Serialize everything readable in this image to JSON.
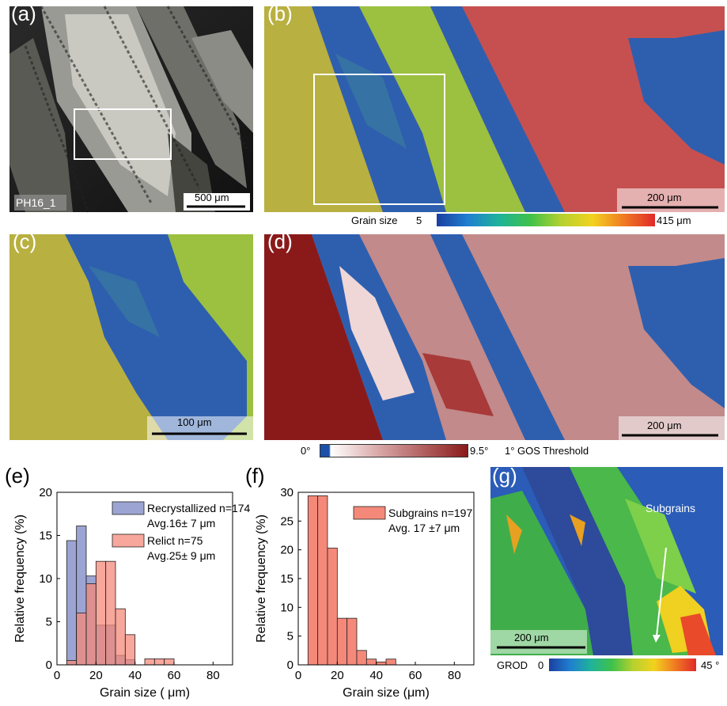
{
  "panels": {
    "a": {
      "label": "(a)",
      "sample": "PH16_1",
      "scalebar": "500 μm"
    },
    "b": {
      "label": "(b)",
      "scalebar": "200 μm"
    },
    "c": {
      "label": "(c)",
      "scalebar": "100 μm"
    },
    "d": {
      "label": "(d)",
      "scalebar": "200 μm"
    },
    "e": {
      "label": "(e)"
    },
    "f": {
      "label": "(f)"
    },
    "g": {
      "label": "(g)",
      "scalebar": "200 μm",
      "annotation": "Subgrains"
    }
  },
  "colorbars": {
    "grain_size": {
      "title": "Grain size",
      "min": "5",
      "max": "415 μm"
    },
    "gos": {
      "min": "0°",
      "max": "9.5°",
      "threshold": "1° GOS Threshold"
    },
    "grod": {
      "title": "GROD",
      "min": "0",
      "max": "45 °"
    }
  },
  "colors": {
    "recrystallized": "#7b86c4",
    "relict": "#f4897a",
    "overlap": "#a64a66",
    "subgrains": "#f4897a",
    "map_red": "#c65050",
    "map_yellow": "#b8b040",
    "map_green": "#9cc040",
    "map_blue": "#2e5faf",
    "gos_dark": "#8a1a1a",
    "gos_light": "#c28a8a"
  },
  "chart_data": [
    {
      "type": "bar",
      "panel": "e",
      "xlabel": "Grain size ( μm)",
      "ylabel": "Relative frequency (%)",
      "xlim": [
        0,
        90
      ],
      "ylim": [
        0,
        20
      ],
      "xticks": [
        "0",
        "20",
        "40",
        "60",
        "80"
      ],
      "yticks": [
        "0",
        "5",
        "10",
        "15",
        "20"
      ],
      "bin_edges": [
        5,
        10,
        15,
        20,
        25,
        30,
        35,
        40,
        45,
        50,
        55,
        60
      ],
      "series": [
        {
          "name": "Recrystallized n=174",
          "note": "Avg.16± 7 μm",
          "values": [
            14.4,
            16.1,
            10.3,
            4.6,
            4.6,
            1.1,
            0.6,
            0,
            0,
            0,
            0
          ]
        },
        {
          "name": "Relict n=75",
          "note": "Avg.25± 9 μm",
          "values": [
            0.5,
            6.0,
            9.4,
            12.0,
            12.0,
            6.5,
            3.5,
            0,
            0.7,
            0.7,
            0.7
          ]
        }
      ]
    },
    {
      "type": "bar",
      "panel": "f",
      "xlabel": "Grain size (μm)",
      "ylabel": "Relative frequency (%)",
      "xlim": [
        0,
        90
      ],
      "ylim": [
        0,
        30
      ],
      "xticks": [
        "0",
        "20",
        "40",
        "60",
        "80"
      ],
      "yticks": [
        "0",
        "5",
        "10",
        "15",
        "20",
        "25",
        "30"
      ],
      "bin_edges": [
        5,
        10,
        15,
        20,
        25,
        30,
        35,
        40,
        45,
        50
      ],
      "series": [
        {
          "name": "Subgrains n=197",
          "note": "Avg. 17 ±7 μm",
          "values": [
            29.4,
            29.4,
            20.3,
            8.1,
            8.1,
            2.5,
            1.0,
            0.5,
            1.0
          ]
        }
      ]
    }
  ]
}
